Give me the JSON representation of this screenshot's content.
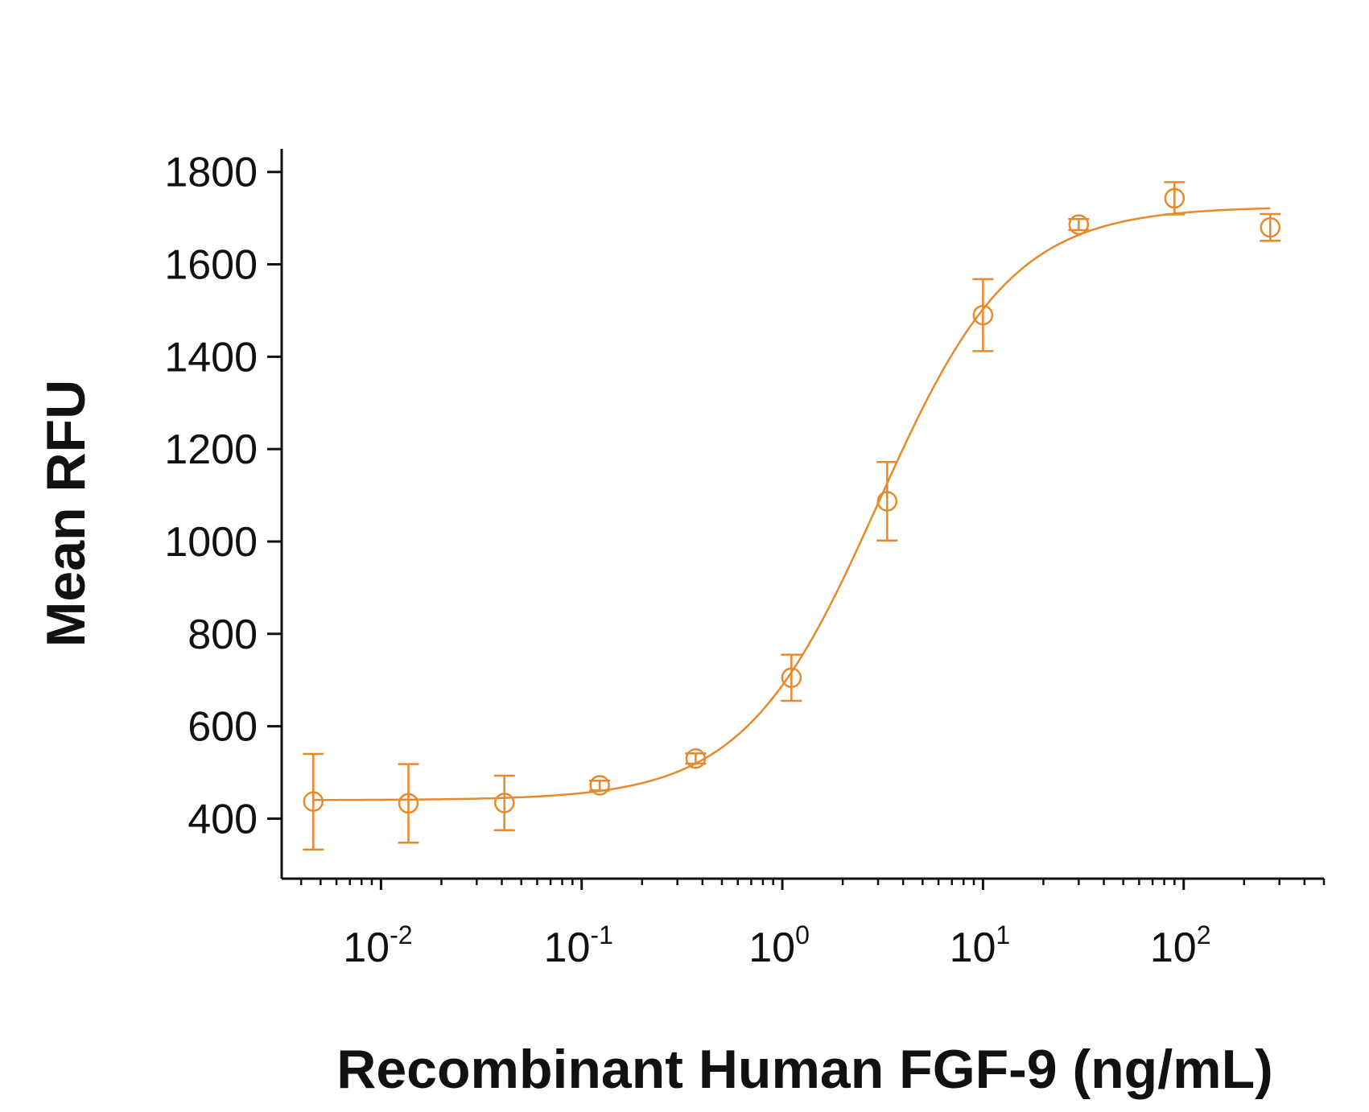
{
  "chart_data": {
    "type": "scatter",
    "title": "",
    "xlabel": "Recombinant Human FGF-9 (ng/mL)",
    "ylabel": "Mean RFU",
    "x_scale": "log",
    "xlim": [
      0.0032,
      500
    ],
    "ylim": [
      270,
      1850
    ],
    "y_ticks": [
      400,
      600,
      800,
      1000,
      1200,
      1400,
      1600,
      1800
    ],
    "x_ticks": [
      {
        "value": 0.01,
        "base": "10",
        "exp": "-2"
      },
      {
        "value": 0.1,
        "base": "10",
        "exp": "-1"
      },
      {
        "value": 1,
        "base": "10",
        "exp": "0"
      },
      {
        "value": 10,
        "base": "10",
        "exp": "1"
      },
      {
        "value": 100,
        "base": "10",
        "exp": "2"
      }
    ],
    "grid": false,
    "color": "#E8892B",
    "series": [
      {
        "points": [
          {
            "x": 0.0046,
            "y": 437,
            "err_low": 333,
            "err_high": 540
          },
          {
            "x": 0.0137,
            "y": 433,
            "err_low": 348,
            "err_high": 518
          },
          {
            "x": 0.0412,
            "y": 434,
            "err_low": 375,
            "err_high": 493
          },
          {
            "x": 0.123,
            "y": 472,
            "err_low": 461,
            "err_high": 482
          },
          {
            "x": 0.37,
            "y": 530,
            "err_low": 519,
            "err_high": 541
          },
          {
            "x": 1.11,
            "y": 705,
            "err_low": 655,
            "err_high": 755
          },
          {
            "x": 3.33,
            "y": 1087,
            "err_low": 1002,
            "err_high": 1172
          },
          {
            "x": 10,
            "y": 1490,
            "err_low": 1412,
            "err_high": 1568
          },
          {
            "x": 30,
            "y": 1686,
            "err_low": 1674,
            "err_high": 1698
          },
          {
            "x": 90,
            "y": 1743,
            "err_low": 1708,
            "err_high": 1778
          },
          {
            "x": 270,
            "y": 1680,
            "err_low": 1651,
            "err_high": 1709
          }
        ],
        "fit": {
          "model": "4PL",
          "bottom": 440,
          "top": 1725,
          "ec50": 3.0,
          "hill": 1.3
        }
      }
    ]
  }
}
